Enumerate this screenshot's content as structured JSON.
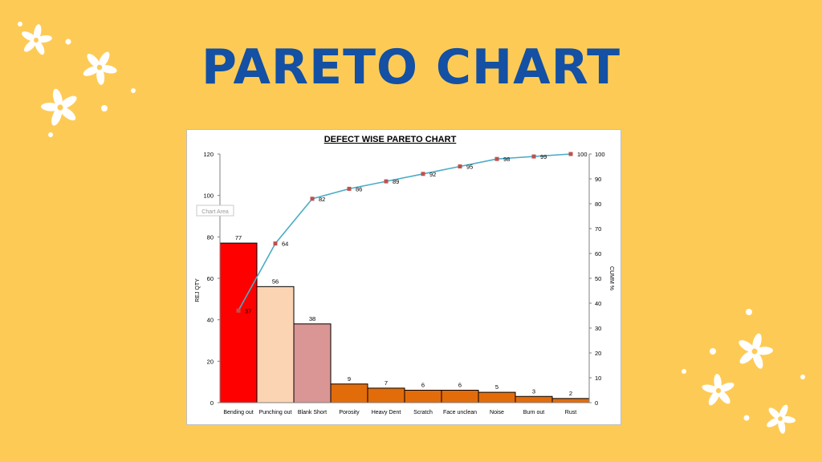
{
  "page": {
    "banner_title": "PARETO CHART",
    "background_color": "#FDCB55",
    "title_color": "#1450A3",
    "decoration_icon": "flower-icon",
    "tooltip": "Chart Area"
  },
  "chart_data": {
    "type": "bar",
    "title": "DEFECT WISE PARETO CHART",
    "categories": [
      "Bending out",
      "Punching out",
      "Blank Short",
      "Porosity",
      "Heavy Dent",
      "Scratch",
      "Face unclean",
      "Noise",
      "Burn out",
      "Rust"
    ],
    "series": [
      {
        "type": "bar",
        "axis": "left",
        "values": [
          77,
          56,
          38,
          9,
          7,
          6,
          6,
          5,
          3,
          2
        ],
        "colors": [
          "#FF0000",
          "#FBD4B4",
          "#D99694",
          "#E36C0A",
          "#E36C0A",
          "#E36C0A",
          "#E36C0A",
          "#E36C0A",
          "#E36C0A",
          "#E36C0A"
        ]
      },
      {
        "type": "line",
        "axis": "right",
        "values": [
          37,
          64,
          82,
          86,
          89,
          92,
          95,
          98,
          99,
          100
        ],
        "line_color": "#4BACC6",
        "marker_color": "#C0504D"
      }
    ],
    "ylabel": "REJ QTY",
    "y2label": "CUMM %",
    "ylim": [
      0,
      120
    ],
    "yticks": [
      "0",
      "20",
      "40",
      "60",
      "80",
      "100",
      "120"
    ],
    "y2lim": [
      0,
      100
    ],
    "y2ticks": [
      "0",
      "10",
      "20",
      "30",
      "40",
      "50",
      "60",
      "70",
      "80",
      "90",
      "100"
    ],
    "grid": false,
    "legend": "none"
  }
}
